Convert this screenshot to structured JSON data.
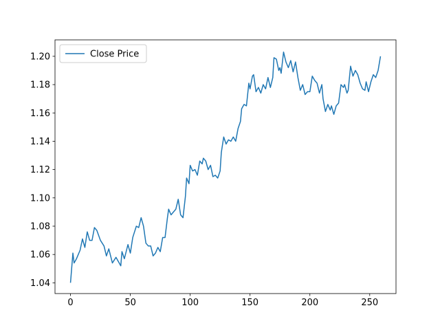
{
  "chart_data": {
    "type": "line",
    "series": [
      {
        "name": "Close Price",
        "color": "#1f77b4",
        "x": [
          0,
          2,
          3,
          5,
          8,
          10,
          12,
          14,
          16,
          18,
          20,
          22,
          25,
          28,
          30,
          32,
          35,
          38,
          42,
          43,
          45,
          48,
          50,
          52,
          55,
          57,
          59,
          61,
          63,
          65,
          67,
          69,
          71,
          73,
          75,
          77,
          79,
          81,
          82,
          84,
          86,
          88,
          90,
          92,
          94,
          96,
          97,
          99,
          100,
          102,
          104,
          106,
          108,
          110,
          111,
          113,
          115,
          117,
          119,
          121,
          123,
          125,
          126,
          128,
          130,
          132,
          134,
          136,
          138,
          140,
          142,
          143,
          145,
          147,
          149,
          150,
          152,
          153,
          155,
          157,
          159,
          161,
          163,
          165,
          167,
          169,
          170,
          172,
          174,
          175,
          176,
          178,
          180,
          182,
          184,
          186,
          188,
          190,
          192,
          194,
          196,
          198,
          200,
          202,
          204,
          206,
          208,
          210,
          211,
          213,
          215,
          217,
          218,
          220,
          222,
          224,
          226,
          228,
          229,
          231,
          232,
          234,
          236,
          238,
          240,
          242,
          244,
          246,
          247,
          249,
          251,
          253,
          255,
          257,
          259
        ],
        "values": [
          1.04,
          1.061,
          1.054,
          1.057,
          1.063,
          1.071,
          1.065,
          1.076,
          1.07,
          1.07,
          1.079,
          1.077,
          1.07,
          1.066,
          1.059,
          1.064,
          1.054,
          1.058,
          1.052,
          1.062,
          1.057,
          1.067,
          1.061,
          1.072,
          1.08,
          1.079,
          1.086,
          1.08,
          1.068,
          1.066,
          1.066,
          1.059,
          1.061,
          1.065,
          1.062,
          1.072,
          1.072,
          1.086,
          1.092,
          1.088,
          1.09,
          1.092,
          1.099,
          1.088,
          1.086,
          1.101,
          1.114,
          1.11,
          1.123,
          1.119,
          1.12,
          1.116,
          1.126,
          1.124,
          1.128,
          1.126,
          1.12,
          1.123,
          1.115,
          1.116,
          1.114,
          1.119,
          1.132,
          1.143,
          1.138,
          1.141,
          1.14,
          1.143,
          1.14,
          1.149,
          1.154,
          1.163,
          1.166,
          1.165,
          1.181,
          1.177,
          1.186,
          1.187,
          1.175,
          1.178,
          1.174,
          1.18,
          1.177,
          1.185,
          1.178,
          1.185,
          1.199,
          1.198,
          1.19,
          1.192,
          1.188,
          1.203,
          1.196,
          1.192,
          1.197,
          1.189,
          1.196,
          1.185,
          1.176,
          1.18,
          1.173,
          1.175,
          1.175,
          1.186,
          1.183,
          1.181,
          1.174,
          1.18,
          1.17,
          1.161,
          1.166,
          1.162,
          1.165,
          1.159,
          1.165,
          1.167,
          1.18,
          1.178,
          1.18,
          1.174,
          1.176,
          1.193,
          1.186,
          1.19,
          1.187,
          1.181,
          1.177,
          1.176,
          1.182,
          1.175,
          1.182,
          1.187,
          1.185,
          1.19,
          1.2
        ]
      }
    ],
    "xlim": [
      -12.95,
      271.95
    ],
    "ylim": [
      1.0324,
      1.2116
    ],
    "xticks": [
      0,
      50,
      100,
      150,
      200,
      250
    ],
    "yticks": [
      {
        "value": 1.04,
        "label": "1.04"
      },
      {
        "value": 1.06,
        "label": "1.06"
      },
      {
        "value": 1.08,
        "label": "1.08"
      },
      {
        "value": 1.1,
        "label": "1.10"
      },
      {
        "value": 1.12,
        "label": "1.12"
      },
      {
        "value": 1.14,
        "label": "1.14"
      },
      {
        "value": 1.16,
        "label": "1.16"
      },
      {
        "value": 1.18,
        "label": "1.18"
      },
      {
        "value": 1.2,
        "label": "1.20"
      }
    ],
    "legend": "upper left"
  }
}
